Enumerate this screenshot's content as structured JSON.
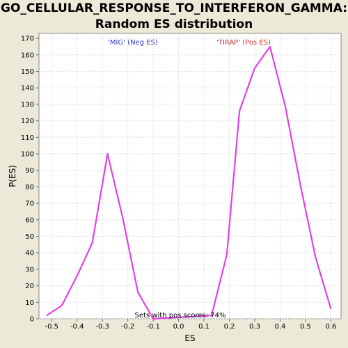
{
  "chart_data": {
    "type": "line",
    "title": "GO_CELLULAR_RESPONSE_TO_INTERFERON_GAMMA:",
    "subtitle": "Random ES distribution",
    "xlabel": "ES",
    "ylabel": "P(ES)",
    "xlim": [
      -0.55,
      0.64
    ],
    "ylim": [
      0,
      173
    ],
    "xticks": [
      "-0.5",
      "-0.4",
      "-0.3",
      "-0.2",
      "-0.1",
      "0.0",
      "0.1",
      "0.2",
      "0.3",
      "0.4",
      "0.5",
      "0.6"
    ],
    "yticks": [
      "0",
      "10",
      "20",
      "30",
      "40",
      "50",
      "60",
      "70",
      "80",
      "90",
      "100",
      "110",
      "120",
      "130",
      "140",
      "150",
      "160",
      "170"
    ],
    "grid": true,
    "series_color": "#e040e8",
    "x": [
      -0.52,
      -0.46,
      -0.4,
      -0.34,
      -0.28,
      -0.22,
      -0.16,
      -0.1,
      0.13,
      0.19,
      0.24,
      0.3,
      0.36,
      0.42,
      0.48,
      0.54,
      0.6
    ],
    "y": [
      2,
      8,
      26,
      46,
      100,
      61,
      16,
      0,
      2,
      39,
      126,
      152,
      165,
      129,
      81,
      37,
      6
    ],
    "annotations": {
      "neg_label": "'MIG' (Neg ES)",
      "neg_color": "#3333cc",
      "pos_label": "'TIRAP' (Pos ES)",
      "pos_color": "#cc3333",
      "sets_text": "Sets with pos scores: 74%"
    }
  }
}
